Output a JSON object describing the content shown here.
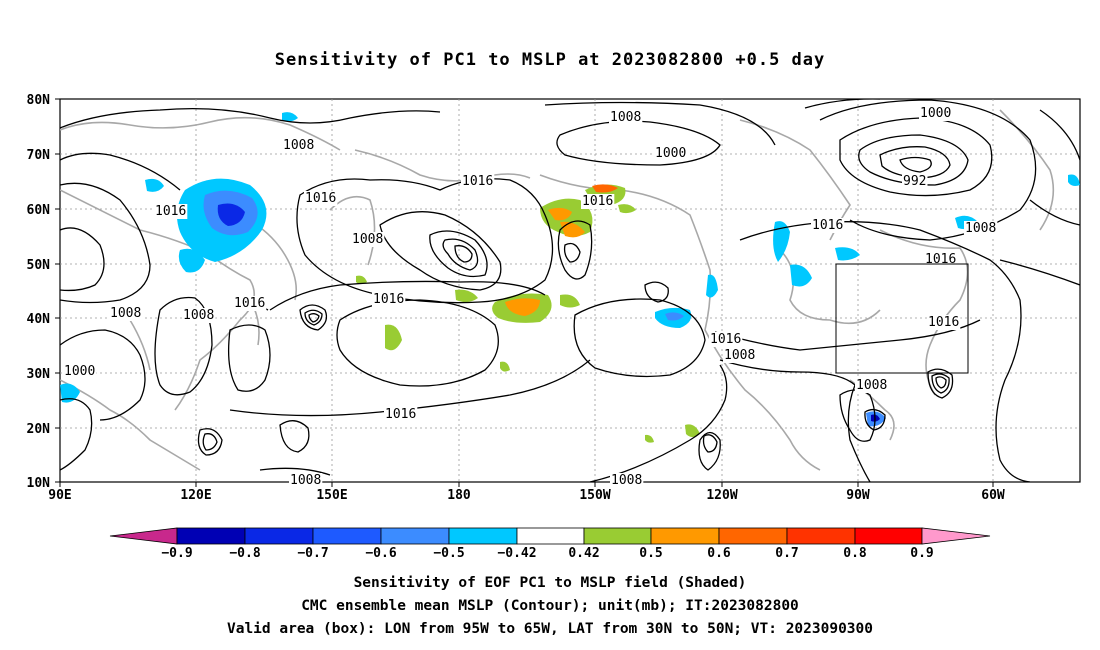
{
  "title": "Sensitivity of PC1 to MSLP at 2023082800 +0.5 day",
  "map": {
    "lat_labels": [
      "80N",
      "70N",
      "60N",
      "50N",
      "40N",
      "30N",
      "20N",
      "10N"
    ],
    "lon_labels": [
      "90E",
      "120E",
      "150E",
      "180",
      "150W",
      "120W",
      "90W",
      "60W"
    ],
    "contour_labels": [
      {
        "text": "1008"
      },
      {
        "text": "1016"
      },
      {
        "text": "1008"
      },
      {
        "text": "1016"
      },
      {
        "text": "1000"
      },
      {
        "text": "1016"
      },
      {
        "text": "1016"
      },
      {
        "text": "1008"
      },
      {
        "text": "1000"
      },
      {
        "text": "992"
      },
      {
        "text": "1016"
      },
      {
        "text": "1008"
      },
      {
        "text": "1008"
      },
      {
        "text": "1008"
      },
      {
        "text": "1016"
      },
      {
        "text": "1016"
      },
      {
        "text": "1016"
      },
      {
        "text": "1016"
      },
      {
        "text": "1008"
      },
      {
        "text": "1016"
      },
      {
        "text": "1008"
      },
      {
        "text": "1000"
      },
      {
        "text": "1008"
      },
      {
        "text": "1008"
      },
      {
        "text": "1016"
      },
      {
        "text": "1008"
      }
    ]
  },
  "colorbar": {
    "labels": [
      "−0.9",
      "−0.8",
      "−0.7",
      "−0.6",
      "−0.5",
      "−0.42",
      "0.42",
      "0.5",
      "0.6",
      "0.7",
      "0.8",
      "0.9"
    ],
    "colors": [
      "#c8288c",
      "#0000b4",
      "#0a28e6",
      "#1e5aff",
      "#3c8cff",
      "#00c8ff",
      "#ffffff",
      "#99cc33",
      "#ff9900",
      "#ff6600",
      "#ff3300",
      "#ff0000",
      "#ff99cc"
    ]
  },
  "captions": {
    "line1": "Sensitivity of EOF PC1 to MSLP field (Shaded)",
    "line2": "CMC ensemble mean MSLP (Contour); unit(mb); IT:2023082800",
    "line3": "Valid area (box): LON from 95W to 65W, LAT from 30N to 50N; VT: 2023090300"
  },
  "colors": {
    "contour": "#000000",
    "coastline": "#a0a0a0",
    "gridline": "#999999",
    "valid_box": "#000000"
  }
}
